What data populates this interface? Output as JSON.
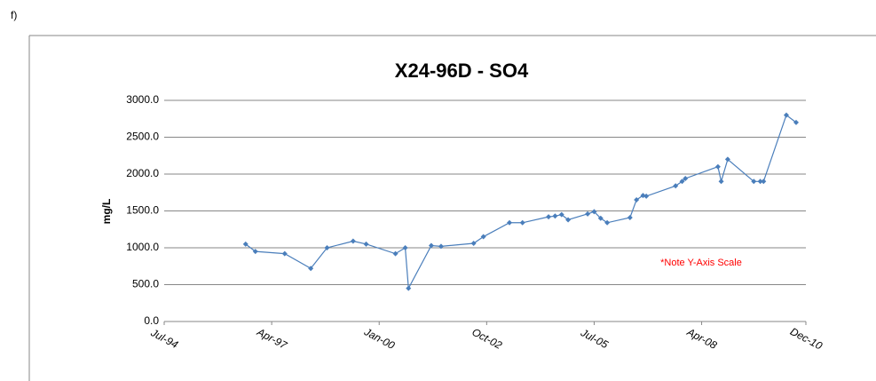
{
  "label": "f)",
  "chart_data": {
    "type": "line",
    "title": "X24-96D - SO4",
    "ylabel": "mg/L",
    "annotation": "*Note Y-Axis Scale",
    "color": "#4a7ebb",
    "grid": true,
    "x": [
      "1996-08",
      "1996-11",
      "1997-08",
      "1998-04",
      "1998-09",
      "1999-05",
      "1999-09",
      "2000-06",
      "2000-09",
      "2000-10",
      "2001-05",
      "2001-08",
      "2002-06",
      "2002-09",
      "2003-05",
      "2003-09",
      "2004-05",
      "2004-07",
      "2004-09",
      "2004-11",
      "2005-05",
      "2005-07",
      "2005-09",
      "2005-11",
      "2006-06",
      "2006-08",
      "2006-10",
      "2006-11",
      "2007-08",
      "2007-10",
      "2007-11",
      "2008-09",
      "2008-10",
      "2008-12",
      "2009-08",
      "2009-10",
      "2009-11",
      "2010-06",
      "2010-09"
    ],
    "values": [
      1050,
      950,
      920,
      720,
      1000,
      1090,
      1050,
      920,
      1000,
      450,
      1030,
      1020,
      1060,
      1150,
      1340,
      1340,
      1420,
      1430,
      1450,
      1380,
      1460,
      1490,
      1400,
      1340,
      1410,
      1650,
      1710,
      1700,
      1840,
      1900,
      1940,
      2100,
      1900,
      2200,
      1900,
      1900,
      1900,
      2800,
      2700
    ],
    "xlim": [
      "1994-07",
      "2010-12"
    ],
    "xticks": [
      {
        "value": "1994-07",
        "label": "Jul-94"
      },
      {
        "value": "1997-04",
        "label": "Apr-97"
      },
      {
        "value": "2000-01",
        "label": "Jan-00"
      },
      {
        "value": "2002-10",
        "label": "Oct-02"
      },
      {
        "value": "2005-07",
        "label": "Jul-05"
      },
      {
        "value": "2008-04",
        "label": "Apr-08"
      },
      {
        "value": "2010-12",
        "label": "Dec-10"
      }
    ],
    "ylim": [
      0,
      3000
    ],
    "yticks": [
      {
        "value": 0,
        "label": "0.0"
      },
      {
        "value": 500,
        "label": "500.0"
      },
      {
        "value": 1000,
        "label": "1000.0"
      },
      {
        "value": 1500,
        "label": "1500.0"
      },
      {
        "value": 2000,
        "label": "2000.0"
      },
      {
        "value": 2500,
        "label": "2500.0"
      },
      {
        "value": 3000,
        "label": "3000.0"
      }
    ]
  }
}
